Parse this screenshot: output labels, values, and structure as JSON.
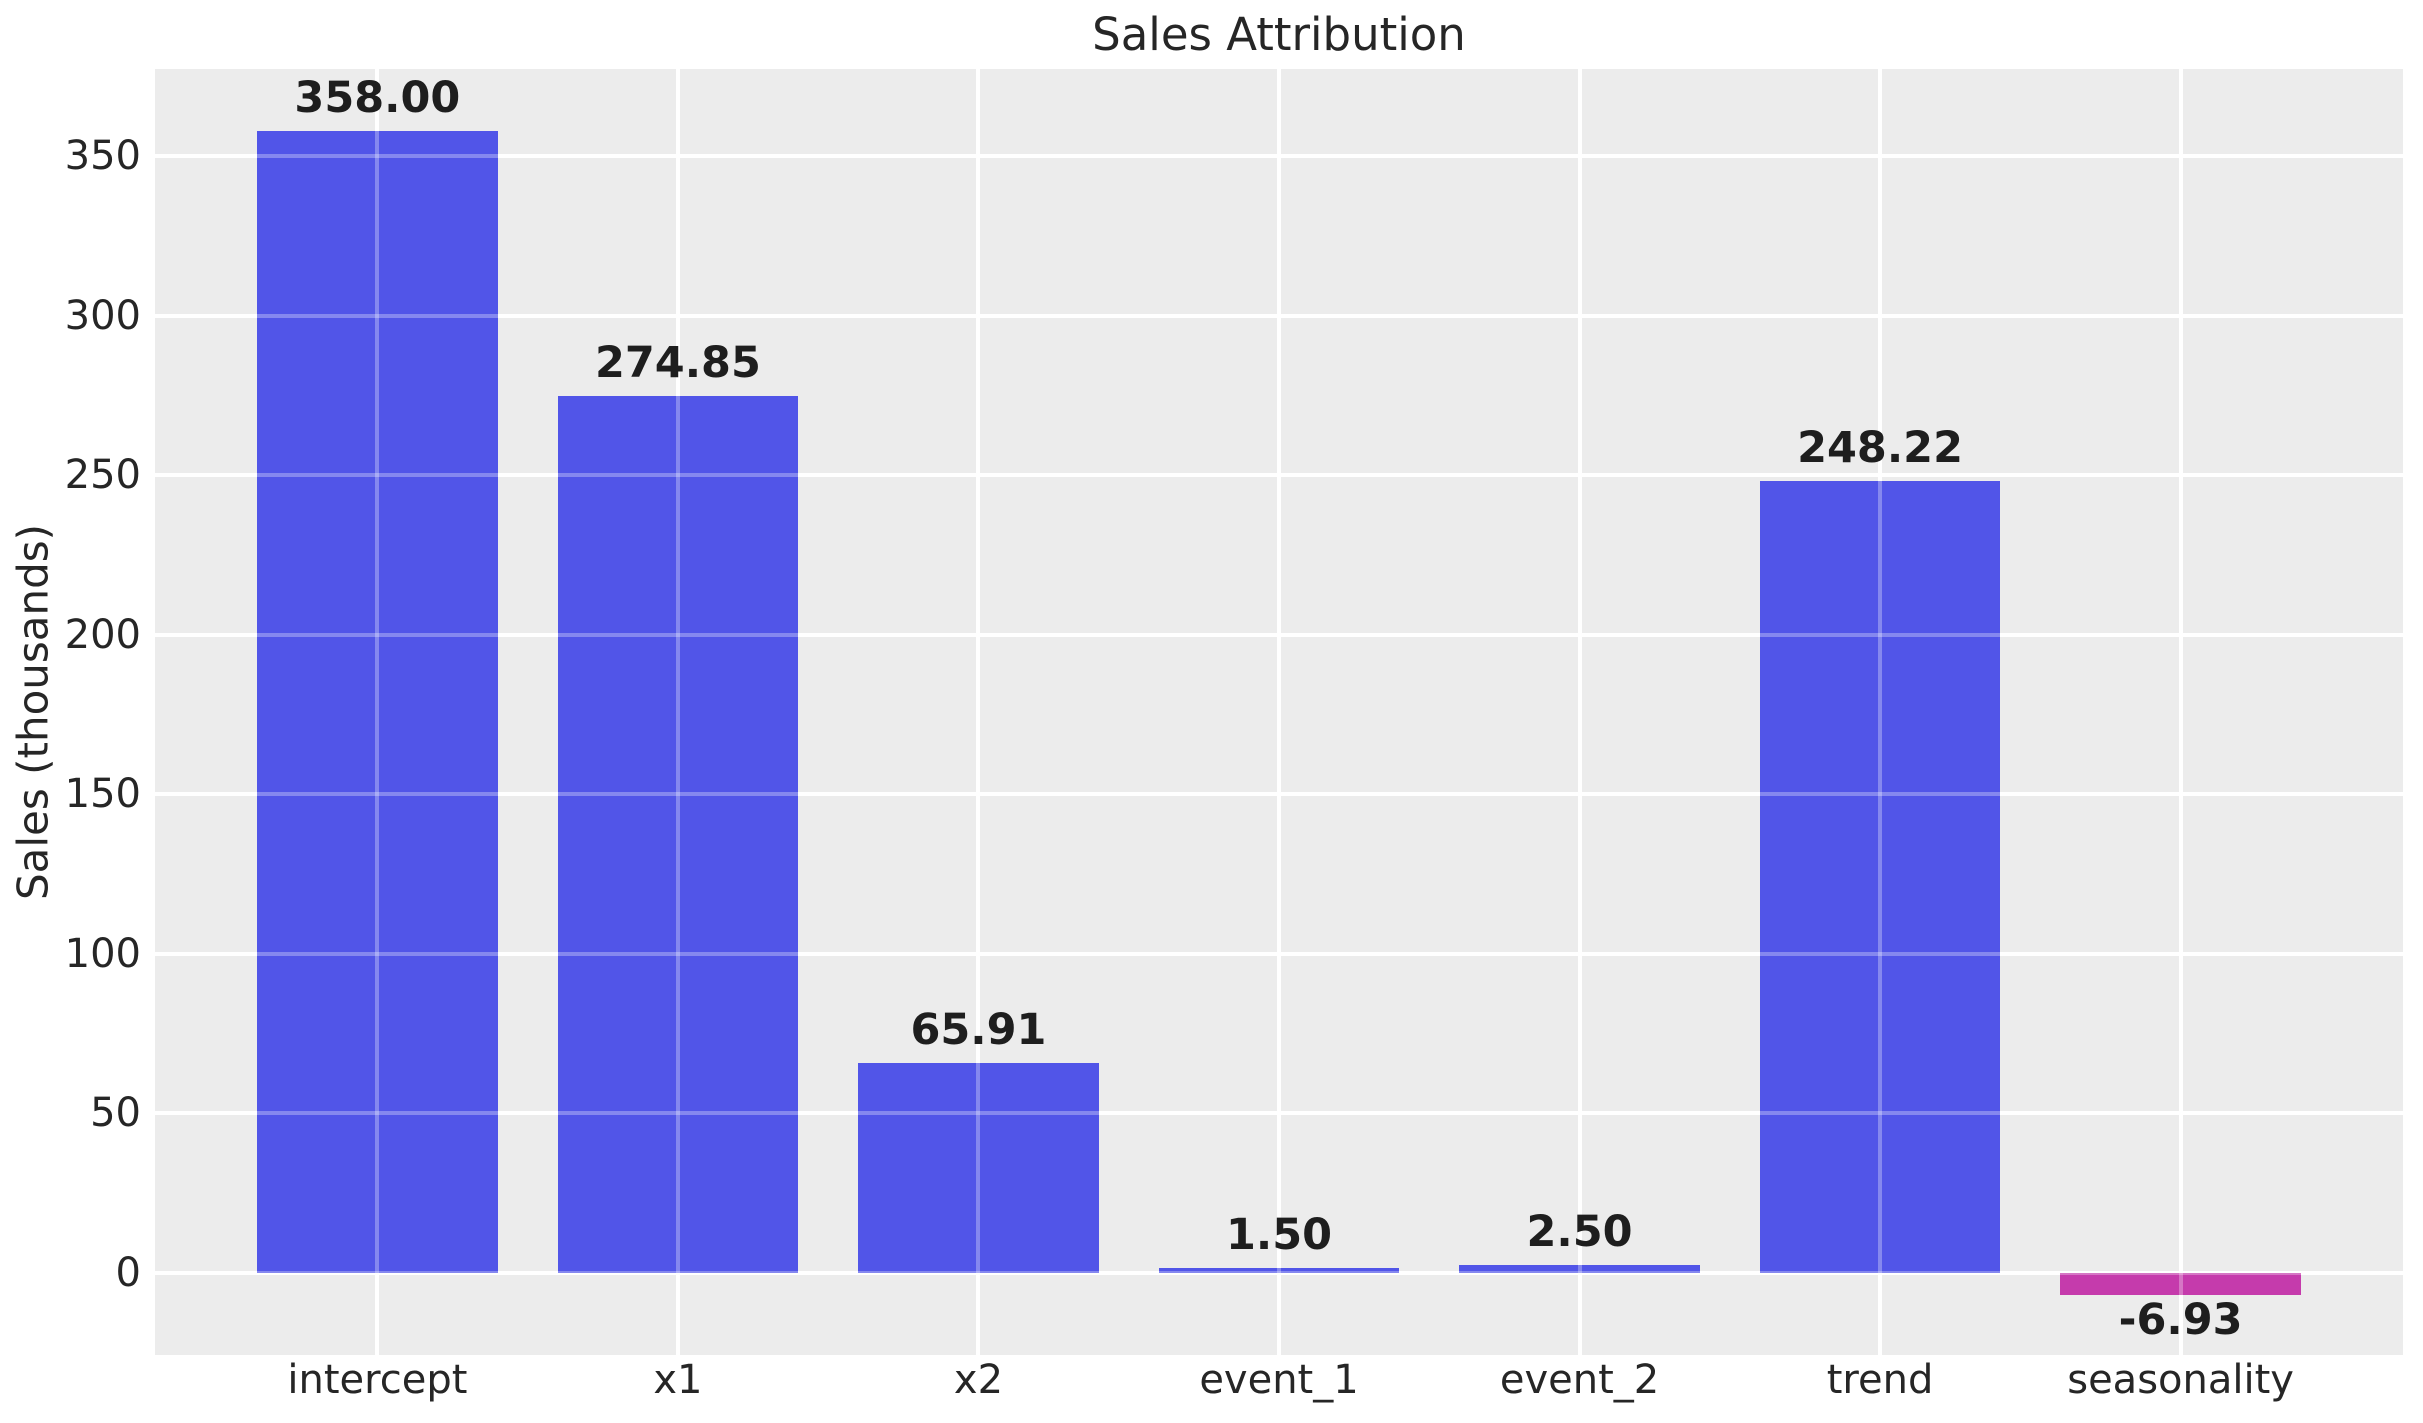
{
  "chart_data": {
    "type": "bar",
    "title": "Sales Attribution",
    "xlabel": "",
    "ylabel": "Sales (thousands)",
    "categories": [
      "intercept",
      "x1",
      "x2",
      "event_1",
      "event_2",
      "trend",
      "seasonality"
    ],
    "values": [
      358.0,
      274.85,
      65.91,
      1.5,
      2.5,
      248.22,
      -6.93
    ],
    "value_labels": [
      "358.00",
      "274.85",
      "65.91",
      "1.50",
      "2.50",
      "248.22",
      "-6.93"
    ],
    "bar_colors": [
      "#5155E8",
      "#5155E8",
      "#5155E8",
      "#5155E8",
      "#5155E8",
      "#5155E8",
      "#C53BAC"
    ],
    "yticks": [
      0,
      50,
      100,
      150,
      200,
      250,
      300,
      350
    ],
    "ylim": [
      -25.7,
      377.3
    ],
    "xlim": [
      -0.74,
      6.74
    ],
    "bar_width": 0.8,
    "grid": true,
    "legend_position": "none",
    "style": {
      "figure_background": "#FFFFFF",
      "plot_background": "#ECECEC",
      "grid_color": "#FFFFFF",
      "tick_label_color": "#262626",
      "title_color": "#262626",
      "axis_label_color": "#262626",
      "value_label_color": "#1E1E1E",
      "positive_bar_color": "#5155E8",
      "negative_bar_color": "#C53BAC"
    }
  }
}
